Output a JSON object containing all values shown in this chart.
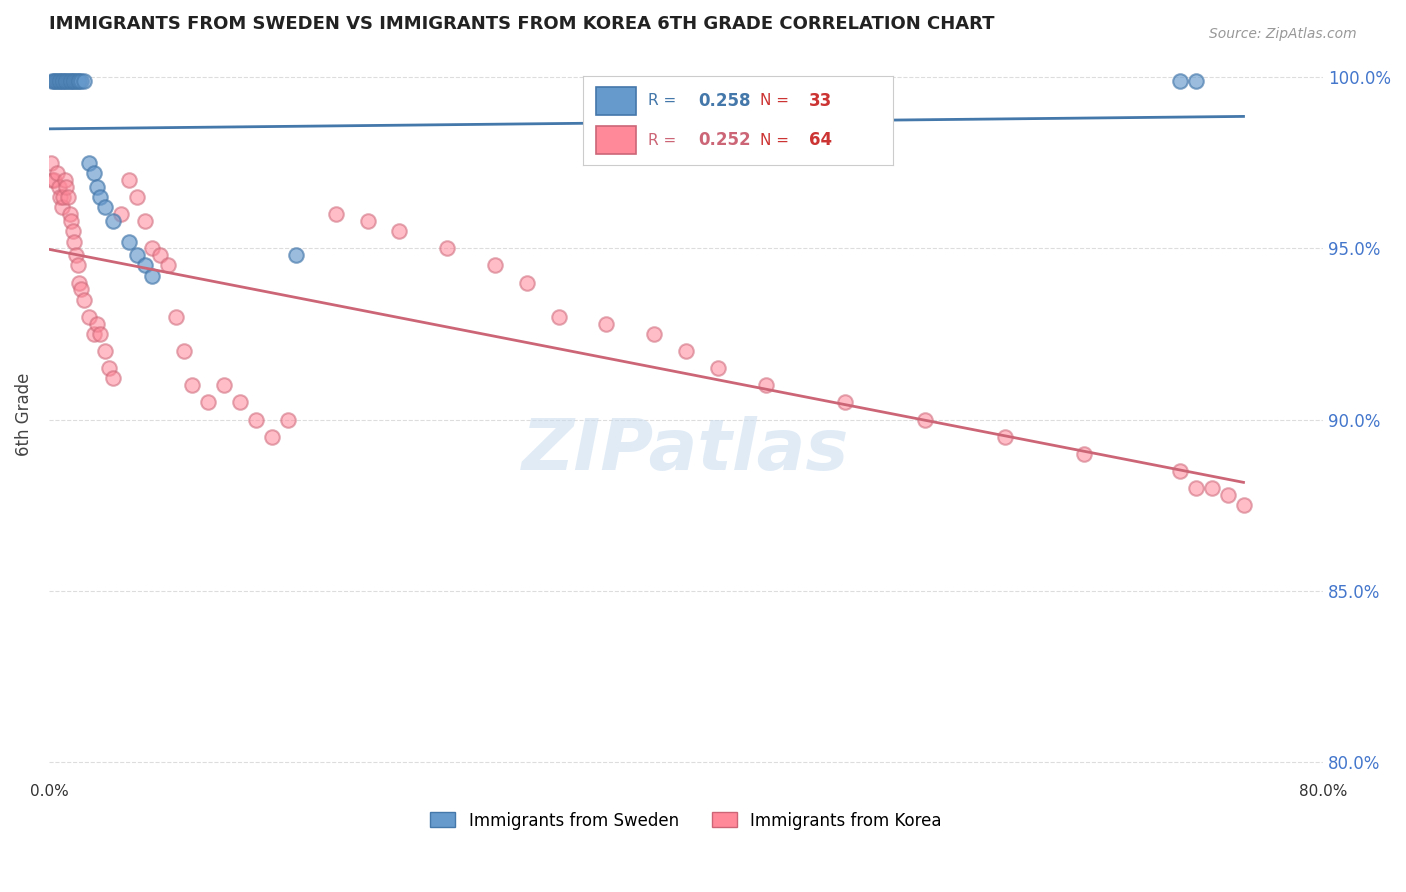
{
  "title": "IMMIGRANTS FROM SWEDEN VS IMMIGRANTS FROM KOREA 6TH GRADE CORRELATION CHART",
  "source": "Source: ZipAtlas.com",
  "legend_label_sweden": "Immigrants from Sweden",
  "legend_label_korea": "Immigrants from Korea",
  "ylabel": "6th Grade",
  "r_sweden": 0.258,
  "n_sweden": 33,
  "r_korea": 0.252,
  "n_korea": 64,
  "xlim": [
    0.0,
    0.8
  ],
  "ylim": [
    0.795,
    1.008
  ],
  "yticks": [
    0.8,
    0.85,
    0.9,
    0.95,
    1.0
  ],
  "ytick_labels": [
    "80.0%",
    "85.0%",
    "90.0%",
    "95.0%",
    "100.0%"
  ],
  "xticks": [
    0.0,
    0.1,
    0.2,
    0.3,
    0.4,
    0.5,
    0.6,
    0.7,
    0.8
  ],
  "xtick_labels": [
    "0.0%",
    "",
    "",
    "",
    "",
    "",
    "",
    "",
    "80.0%"
  ],
  "color_sweden": "#6699CC",
  "color_korea": "#FF8899",
  "color_sweden_line": "#4477AA",
  "color_korea_line": "#CC6677",
  "background_color": "#FFFFFF",
  "grid_color": "#DDDDDD",
  "sweden_x": [
    0.002,
    0.003,
    0.004,
    0.005,
    0.006,
    0.007,
    0.008,
    0.009,
    0.01,
    0.011,
    0.012,
    0.013,
    0.014,
    0.015,
    0.016,
    0.017,
    0.018,
    0.019,
    0.02,
    0.022,
    0.025,
    0.028,
    0.03,
    0.032,
    0.035,
    0.04,
    0.05,
    0.055,
    0.06,
    0.065,
    0.155,
    0.71,
    0.72
  ],
  "sweden_y": [
    0.999,
    0.999,
    0.999,
    0.999,
    0.999,
    0.999,
    0.999,
    0.999,
    0.999,
    0.999,
    0.999,
    0.999,
    0.999,
    0.999,
    0.999,
    0.999,
    0.999,
    0.999,
    0.999,
    0.999,
    0.975,
    0.972,
    0.968,
    0.965,
    0.962,
    0.958,
    0.952,
    0.948,
    0.945,
    0.942,
    0.948,
    0.999,
    0.999
  ],
  "korea_x": [
    0.001,
    0.002,
    0.003,
    0.005,
    0.006,
    0.007,
    0.008,
    0.009,
    0.01,
    0.011,
    0.012,
    0.013,
    0.014,
    0.015,
    0.016,
    0.017,
    0.018,
    0.019,
    0.02,
    0.022,
    0.025,
    0.028,
    0.03,
    0.032,
    0.035,
    0.038,
    0.04,
    0.045,
    0.05,
    0.055,
    0.06,
    0.065,
    0.07,
    0.075,
    0.08,
    0.085,
    0.09,
    0.1,
    0.11,
    0.12,
    0.13,
    0.14,
    0.15,
    0.18,
    0.2,
    0.22,
    0.25,
    0.28,
    0.3,
    0.32,
    0.35,
    0.38,
    0.4,
    0.42,
    0.45,
    0.5,
    0.55,
    0.6,
    0.65,
    0.71,
    0.72,
    0.73,
    0.74,
    0.75
  ],
  "korea_y": [
    0.975,
    0.97,
    0.97,
    0.972,
    0.968,
    0.965,
    0.962,
    0.965,
    0.97,
    0.968,
    0.965,
    0.96,
    0.958,
    0.955,
    0.952,
    0.948,
    0.945,
    0.94,
    0.938,
    0.935,
    0.93,
    0.925,
    0.928,
    0.925,
    0.92,
    0.915,
    0.912,
    0.96,
    0.97,
    0.965,
    0.958,
    0.95,
    0.948,
    0.945,
    0.93,
    0.92,
    0.91,
    0.905,
    0.91,
    0.905,
    0.9,
    0.895,
    0.9,
    0.96,
    0.958,
    0.955,
    0.95,
    0.945,
    0.94,
    0.93,
    0.928,
    0.925,
    0.92,
    0.915,
    0.91,
    0.905,
    0.9,
    0.895,
    0.89,
    0.885,
    0.88,
    0.88,
    0.878,
    0.875
  ]
}
